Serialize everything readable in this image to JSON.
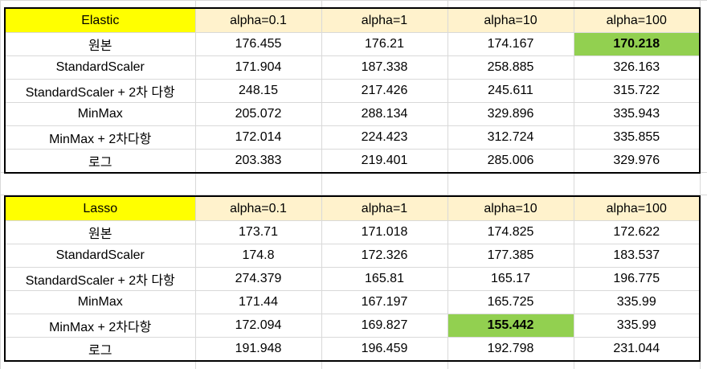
{
  "tables": [
    {
      "model": "Elastic",
      "headers": [
        "alpha=0.1",
        "alpha=1",
        "alpha=10",
        "alpha=100"
      ],
      "rows": [
        {
          "label": "원본",
          "values": [
            "176.455",
            "176.21",
            "174.167",
            "170.218"
          ]
        },
        {
          "label": "StandardScaler",
          "values": [
            "171.904",
            "187.338",
            "258.885",
            "326.163"
          ]
        },
        {
          "label": "StandardScaler + 2차 다항",
          "values": [
            "248.15",
            "217.426",
            "245.611",
            "315.722"
          ]
        },
        {
          "label": "MinMax",
          "values": [
            "205.072",
            "288.134",
            "329.896",
            "335.943"
          ]
        },
        {
          "label": "MinMax + 2차다항",
          "values": [
            "172.014",
            "224.423",
            "312.724",
            "335.855"
          ]
        },
        {
          "label": "로그",
          "values": [
            "203.383",
            "219.401",
            "285.006",
            "329.976"
          ]
        }
      ],
      "best_cell": {
        "row": 0,
        "col": 3
      }
    },
    {
      "model": "Lasso",
      "headers": [
        "alpha=0.1",
        "alpha=1",
        "alpha=10",
        "alpha=100"
      ],
      "rows": [
        {
          "label": "원본",
          "values": [
            "173.71",
            "171.018",
            "174.825",
            "172.622"
          ]
        },
        {
          "label": "StandardScaler",
          "values": [
            "174.8",
            "172.326",
            "177.385",
            "183.537"
          ]
        },
        {
          "label": "StandardScaler + 2차 다항",
          "values": [
            "274.379",
            "165.81",
            "165.17",
            "196.775"
          ]
        },
        {
          "label": "MinMax",
          "values": [
            "171.44",
            "167.197",
            "165.725",
            "335.99"
          ]
        },
        {
          "label": "MinMax + 2차다항",
          "values": [
            "172.094",
            "169.827",
            "155.442",
            "335.99"
          ]
        },
        {
          "label": "로그",
          "values": [
            "191.948",
            "196.459",
            "192.798",
            "231.044"
          ]
        }
      ],
      "best_cell": {
        "row": 4,
        "col": 2
      }
    }
  ],
  "colors": {
    "model_header": "#ffff00",
    "alpha_header": "#fff2cc",
    "best_highlight": "#92d050",
    "gridline": "#d9d9d9",
    "border": "#000000"
  }
}
